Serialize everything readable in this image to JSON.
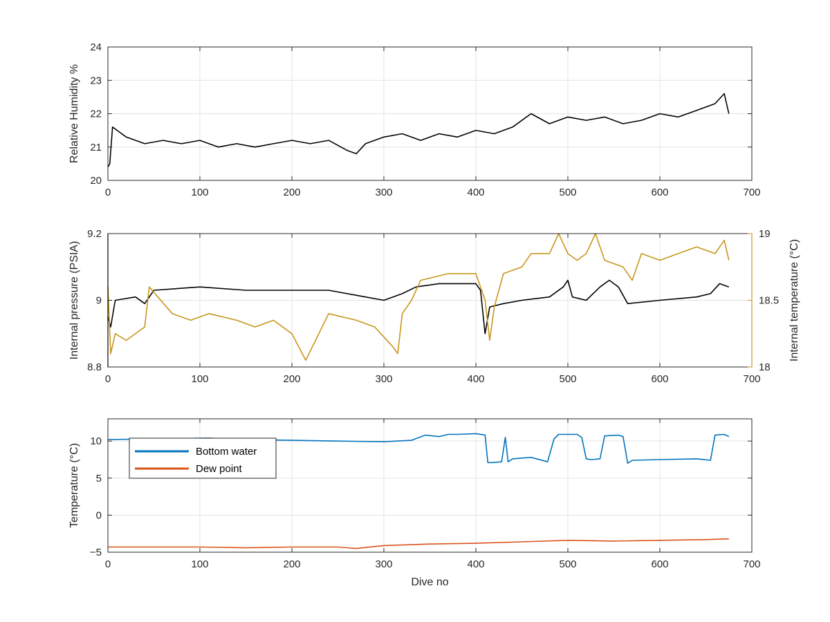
{
  "chart_data": [
    {
      "type": "line",
      "xlabel": "",
      "ylabel": "Relative Humidity %",
      "xlim": [
        0,
        700
      ],
      "ylim": [
        20,
        24
      ],
      "xticks": [
        0,
        100,
        200,
        300,
        400,
        500,
        600,
        700
      ],
      "yticks": [
        20,
        21,
        22,
        23,
        24
      ],
      "grid": true,
      "series": [
        {
          "color": "#000000",
          "x": [
            0,
            2,
            5,
            10,
            20,
            40,
            60,
            80,
            100,
            120,
            140,
            160,
            180,
            200,
            220,
            240,
            260,
            270,
            280,
            300,
            320,
            340,
            360,
            380,
            400,
            420,
            440,
            460,
            480,
            500,
            520,
            540,
            560,
            580,
            600,
            620,
            640,
            660,
            670,
            675
          ],
          "y": [
            20.4,
            20.5,
            21.6,
            21.5,
            21.3,
            21.1,
            21.2,
            21.1,
            21.2,
            21.0,
            21.1,
            21.0,
            21.1,
            21.2,
            21.1,
            21.2,
            20.9,
            20.8,
            21.1,
            21.3,
            21.4,
            21.2,
            21.4,
            21.3,
            21.5,
            21.4,
            21.6,
            22.0,
            21.7,
            21.9,
            21.8,
            21.9,
            21.7,
            21.8,
            22.0,
            21.9,
            22.1,
            22.3,
            22.6,
            22.0
          ]
        }
      ]
    },
    {
      "type": "line",
      "xlabel": "",
      "ylabel": "Internal pressure (PSIA)",
      "ylabel_right": "Internal temperature (°C)",
      "xlim": [
        0,
        700
      ],
      "ylim": [
        8.8,
        9.2
      ],
      "ylim_right": [
        18,
        19
      ],
      "xticks": [
        0,
        100,
        200,
        300,
        400,
        500,
        600,
        700
      ],
      "yticks": [
        8.8,
        9,
        9.2
      ],
      "yticks_right": [
        18,
        18.5,
        19
      ],
      "grid": true,
      "series": [
        {
          "axis": "left",
          "color": "#000000",
          "x": [
            0,
            3,
            8,
            30,
            40,
            50,
            100,
            150,
            200,
            240,
            280,
            300,
            320,
            335,
            360,
            400,
            405,
            410,
            415,
            430,
            450,
            480,
            495,
            500,
            505,
            520,
            535,
            545,
            555,
            565,
            600,
            640,
            655,
            665,
            675
          ],
          "y": [
            8.95,
            8.92,
            9.0,
            9.01,
            8.99,
            9.03,
            9.04,
            9.03,
            9.03,
            9.03,
            9.01,
            9.0,
            9.02,
            9.04,
            9.05,
            9.05,
            9.03,
            8.9,
            8.98,
            8.99,
            9.0,
            9.01,
            9.04,
            9.06,
            9.01,
            9.0,
            9.04,
            9.06,
            9.04,
            8.99,
            9.0,
            9.01,
            9.02,
            9.05,
            9.04
          ]
        },
        {
          "axis": "right",
          "color": "#C7961B",
          "x": [
            0,
            3,
            8,
            20,
            40,
            45,
            70,
            90,
            110,
            140,
            160,
            180,
            200,
            215,
            240,
            270,
            290,
            310,
            315,
            320,
            330,
            340,
            370,
            400,
            410,
            415,
            420,
            430,
            450,
            460,
            480,
            490,
            500,
            510,
            520,
            530,
            540,
            560,
            570,
            580,
            600,
            620,
            640,
            660,
            670,
            675
          ],
          "y": [
            18.6,
            18.1,
            18.25,
            18.2,
            18.3,
            18.6,
            18.4,
            18.35,
            18.4,
            18.35,
            18.3,
            18.35,
            18.25,
            18.05,
            18.4,
            18.35,
            18.3,
            18.15,
            18.1,
            18.4,
            18.5,
            18.65,
            18.7,
            18.7,
            18.5,
            18.2,
            18.45,
            18.7,
            18.75,
            18.85,
            18.85,
            19.0,
            18.85,
            18.8,
            18.85,
            19.0,
            18.8,
            18.75,
            18.65,
            18.85,
            18.8,
            18.85,
            18.9,
            18.85,
            18.95,
            18.8
          ]
        }
      ]
    },
    {
      "type": "line",
      "xlabel": "Dive no",
      "ylabel": "Temperature (°C)",
      "xlim": [
        0,
        700
      ],
      "ylim": [
        -5,
        13
      ],
      "xticks": [
        0,
        100,
        200,
        300,
        400,
        500,
        600,
        700
      ],
      "yticks": [
        -5,
        0,
        5,
        10
      ],
      "grid": true,
      "legend": "top-left",
      "series": [
        {
          "name": "Bottom water",
          "color": "#0072BD",
          "x": [
            0,
            50,
            110,
            150,
            200,
            250,
            300,
            330,
            345,
            360,
            370,
            380,
            400,
            410,
            413,
            418,
            428,
            432,
            435,
            440,
            460,
            478,
            485,
            490,
            510,
            515,
            520,
            525,
            535,
            540,
            555,
            560,
            565,
            570,
            600,
            640,
            655,
            660,
            670,
            675
          ],
          "y": [
            10.2,
            10.3,
            10.4,
            10.2,
            10.1,
            10.0,
            9.9,
            10.1,
            10.8,
            10.6,
            10.9,
            10.9,
            11.0,
            10.8,
            7.1,
            7.1,
            7.2,
            10.5,
            7.2,
            7.6,
            7.8,
            7.2,
            10.3,
            10.9,
            10.9,
            10.5,
            7.6,
            7.5,
            7.6,
            10.7,
            10.8,
            10.6,
            7.0,
            7.4,
            7.5,
            7.6,
            7.4,
            10.8,
            10.9,
            10.6
          ]
        },
        {
          "name": "Dew point",
          "color": "#D95319",
          "x": [
            0,
            50,
            100,
            150,
            200,
            250,
            270,
            300,
            350,
            400,
            450,
            500,
            550,
            600,
            650,
            675
          ],
          "y": [
            -4.3,
            -4.3,
            -4.3,
            -4.4,
            -4.3,
            -4.3,
            -4.5,
            -4.1,
            -3.9,
            -3.8,
            -3.6,
            -3.4,
            -3.5,
            -3.4,
            -3.3,
            -3.2
          ]
        }
      ]
    }
  ]
}
